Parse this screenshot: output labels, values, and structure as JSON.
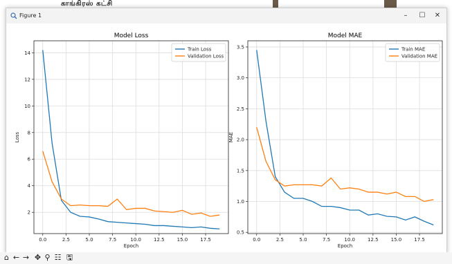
{
  "background": {
    "top_text": "காங்கிரஸ் கட்சி"
  },
  "window": {
    "title": "Figure 1",
    "controls": {
      "minimize": "–",
      "maximize": "☐",
      "close": "✕"
    }
  },
  "colors": {
    "train": "#1f77b4",
    "validation": "#ff7f0e",
    "grid": "#dcdcdc"
  },
  "chart_data": [
    {
      "type": "line",
      "title": "Model Loss",
      "xlabel": "Epoch",
      "ylabel": "Loss",
      "xlim": [
        -0.95,
        19.95
      ],
      "ylim": [
        0.4,
        14.9
      ],
      "xticks": [
        0,
        2.5,
        5,
        7.5,
        10,
        12.5,
        15,
        17.5
      ],
      "xtick_labels": [
        "0.0",
        "2.5",
        "5.0",
        "7.5",
        "10.0",
        "12.5",
        "15.0",
        "17.5"
      ],
      "yticks": [
        2,
        4,
        6,
        8,
        10,
        12,
        14
      ],
      "ytick_labels": [
        "2",
        "4",
        "6",
        "8",
        "10",
        "12",
        "14"
      ],
      "grid": true,
      "legend": "top-right",
      "x": [
        0,
        1,
        2,
        3,
        4,
        5,
        6,
        7,
        8,
        9,
        10,
        11,
        12,
        13,
        14,
        15,
        16,
        17,
        18,
        19
      ],
      "series": [
        {
          "name": "Train Loss",
          "values": [
            14.2,
            7.2,
            2.9,
            2.0,
            1.7,
            1.65,
            1.5,
            1.3,
            1.25,
            1.2,
            1.15,
            1.1,
            1.0,
            1.0,
            0.95,
            0.9,
            0.85,
            0.9,
            0.8,
            0.75
          ]
        },
        {
          "name": "Validation Loss",
          "values": [
            6.6,
            4.3,
            3.0,
            2.5,
            2.55,
            2.5,
            2.5,
            2.45,
            3.0,
            2.2,
            2.3,
            2.3,
            2.1,
            2.05,
            2.0,
            2.15,
            1.85,
            1.95,
            1.7,
            1.8
          ]
        }
      ]
    },
    {
      "type": "line",
      "title": "Model MAE",
      "xlabel": "Epoch",
      "ylabel": "MAE",
      "xlim": [
        -0.95,
        19.95
      ],
      "ylim": [
        0.48,
        3.6
      ],
      "xticks": [
        0,
        2.5,
        5,
        7.5,
        10,
        12.5,
        15,
        17.5
      ],
      "xtick_labels": [
        "0.0",
        "2.5",
        "5.0",
        "7.5",
        "10.0",
        "12.5",
        "15.0",
        "17.5"
      ],
      "yticks": [
        0.5,
        1.0,
        1.5,
        2.0,
        2.5,
        3.0,
        3.5
      ],
      "ytick_labels": [
        "0.5",
        "1.0",
        "1.5",
        "2.0",
        "2.5",
        "3.0",
        "3.5"
      ],
      "grid": true,
      "legend": "top-right",
      "x": [
        0,
        1,
        2,
        3,
        4,
        5,
        6,
        7,
        8,
        9,
        10,
        11,
        12,
        13,
        14,
        15,
        16,
        17,
        18,
        19
      ],
      "series": [
        {
          "name": "Train MAE",
          "values": [
            3.45,
            2.3,
            1.4,
            1.15,
            1.05,
            1.05,
            1.0,
            0.92,
            0.92,
            0.9,
            0.86,
            0.86,
            0.78,
            0.8,
            0.76,
            0.75,
            0.7,
            0.75,
            0.68,
            0.62
          ]
        },
        {
          "name": "Validation MAE",
          "values": [
            2.2,
            1.65,
            1.35,
            1.25,
            1.27,
            1.27,
            1.27,
            1.25,
            1.38,
            1.2,
            1.22,
            1.2,
            1.15,
            1.15,
            1.12,
            1.15,
            1.08,
            1.08,
            1.0,
            1.03
          ]
        }
      ]
    }
  ],
  "toolbar": {
    "tools": [
      {
        "name": "home-icon",
        "glyph": "⌂"
      },
      {
        "name": "back-icon",
        "glyph": "←"
      },
      {
        "name": "forward-icon",
        "glyph": "→"
      },
      {
        "name": "pan-icon",
        "glyph": "✥"
      },
      {
        "name": "zoom-icon",
        "glyph": "⚲"
      },
      {
        "name": "configure-subplots-icon",
        "glyph": "☷"
      },
      {
        "name": "save-icon",
        "glyph": "🖫"
      }
    ]
  }
}
